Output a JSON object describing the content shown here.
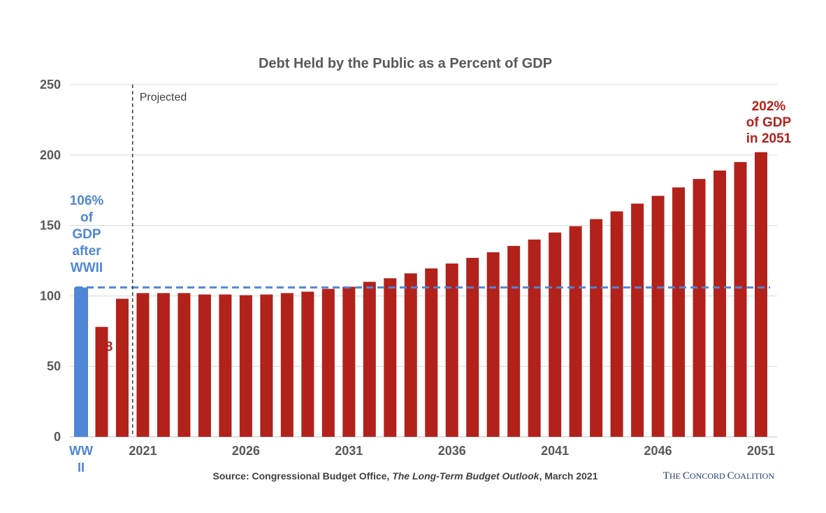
{
  "chart_data": {
    "type": "bar",
    "title": "Debt Held by the Public as a Percent of GDP",
    "ylim": [
      0,
      250
    ],
    "yticks": [
      "0",
      "50",
      "100",
      "150",
      "200",
      "250"
    ],
    "grid": true,
    "categories": [
      "WWII",
      "2019",
      "2020",
      "2021",
      "2022",
      "2023",
      "2024",
      "2025",
      "2026",
      "2027",
      "2028",
      "2029",
      "2030",
      "2031",
      "2032",
      "2033",
      "2034",
      "2035",
      "2036",
      "2037",
      "2038",
      "2039",
      "2040",
      "2041",
      "2042",
      "2043",
      "2044",
      "2045",
      "2046",
      "2047",
      "2048",
      "2049",
      "2050",
      "2051"
    ],
    "values": [
      106,
      78,
      98,
      102,
      102,
      102,
      101,
      101,
      100.5,
      101,
      102,
      103,
      105,
      106.5,
      110,
      112.5,
      116,
      119.5,
      123,
      127,
      131,
      135.5,
      140,
      145,
      149.5,
      154.5,
      160,
      165.5,
      171,
      177,
      183,
      189,
      195,
      202
    ],
    "x_tick_labels": [
      {
        "label": "WW",
        "label2": "II",
        "category": "WWII"
      },
      {
        "label": "2021",
        "category": "2021"
      },
      {
        "label": "2026",
        "category": "2026"
      },
      {
        "label": "2031",
        "category": "2031"
      },
      {
        "label": "2036",
        "category": "2036"
      },
      {
        "label": "2041",
        "category": "2041"
      },
      {
        "label": "2046",
        "category": "2046"
      },
      {
        "label": "2051",
        "category": "2051"
      }
    ],
    "reference_line": {
      "value": 106,
      "style": "dashed"
    },
    "projection_marker": {
      "label": "Projected",
      "after_category": "2020"
    },
    "annotations": {
      "wwii": [
        "106%",
        "of",
        "GDP",
        "after",
        "WWII"
      ],
      "end": [
        "202%",
        "of GDP",
        "in 2051"
      ],
      "partial_label": "8"
    },
    "colors": {
      "historical": "#4f86d6",
      "projected": "#b3211b",
      "reference_line": "#4f86d6",
      "grid": "#d9d9d9",
      "axis_text": "#595959"
    }
  },
  "source": {
    "prefix": "Source: Congressional Budget Office, ",
    "italic": "The Long-Term Budget Outlook",
    "suffix": ", March 2021"
  },
  "brand": {
    "the_T": "T",
    "the_rest": "HE ",
    "concord_C": "C",
    "concord_rest": "ONCORD ",
    "coalition_C": "C",
    "coalition_rest": "OALITION"
  }
}
